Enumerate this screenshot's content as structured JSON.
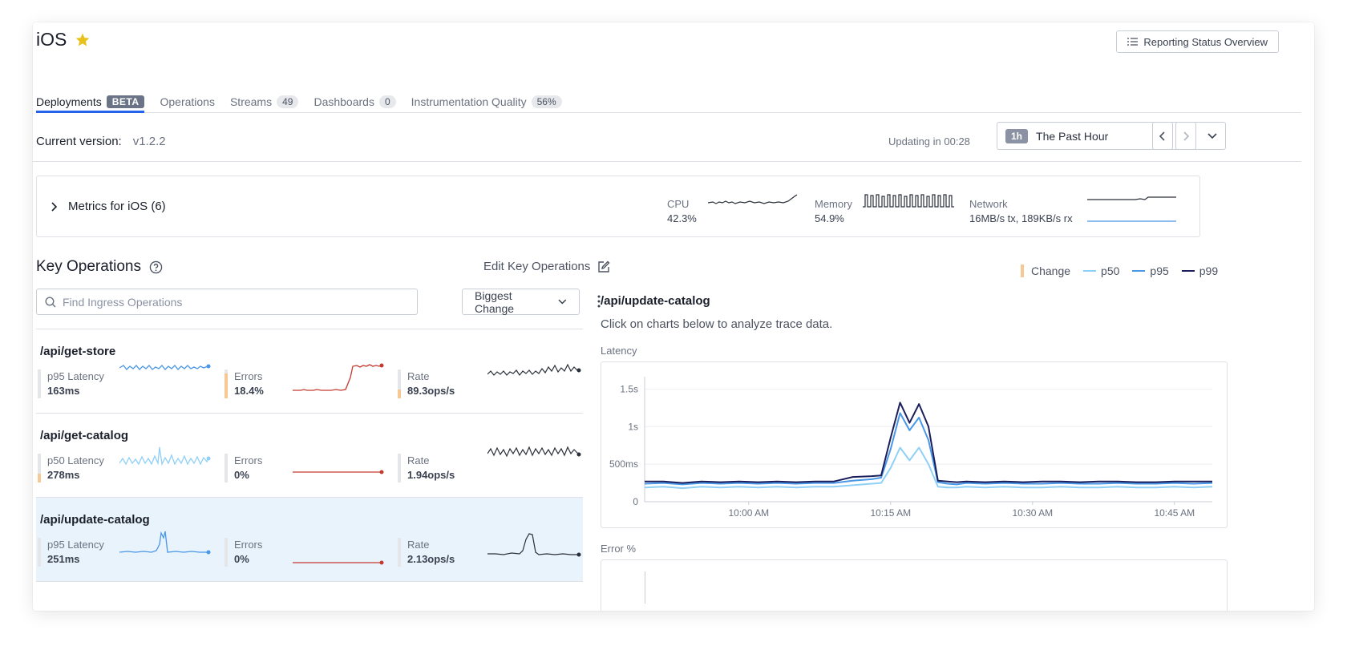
{
  "app": {
    "title": "iOS",
    "report_button": "Reporting Status Overview"
  },
  "tabs": [
    {
      "label": "Deployments",
      "badge": "BETA",
      "active": true
    },
    {
      "label": "Operations",
      "badge": ""
    },
    {
      "label": "Streams",
      "badge": "49"
    },
    {
      "label": "Dashboards",
      "badge": "0"
    },
    {
      "label": "Instrumentation Quality",
      "badge": "56%"
    }
  ],
  "version": {
    "label": "Current version:",
    "value": "v1.2.2"
  },
  "updating": "Updating in 00:28",
  "time_range": {
    "badge": "1h",
    "label": "The Past Hour"
  },
  "metrics": {
    "label": "Metrics for iOS (6)",
    "cpu": {
      "name": "CPU",
      "value": "42.3%"
    },
    "memory": {
      "name": "Memory",
      "value": "54.9%"
    },
    "network": {
      "name": "Network",
      "value": "16MB/s tx, 189KB/s rx"
    }
  },
  "key_ops": {
    "title": "Key Operations",
    "edit": "Edit Key Operations",
    "search_placeholder": "Find Ingress Operations",
    "sort": "Biggest Change"
  },
  "operations": [
    {
      "name": "/api/get-store",
      "latency_label": "p95 Latency",
      "latency": "163ms",
      "errors_label": "Errors",
      "errors": "18.4%",
      "rate_label": "Rate",
      "rate": "89.3ops/s",
      "latency_change": 0.0,
      "errors_change": 0.85,
      "rate_change": 0.3
    },
    {
      "name": "/api/get-catalog",
      "latency_label": "p50 Latency",
      "latency": "278ms",
      "errors_label": "Errors",
      "errors": "0%",
      "rate_label": "Rate",
      "rate": "1.94ops/s",
      "latency_change": 0.3,
      "errors_change": 0.0,
      "rate_change": 0.0
    },
    {
      "name": "/api/update-catalog",
      "latency_label": "p95 Latency",
      "latency": "251ms",
      "errors_label": "Errors",
      "errors": "0%",
      "rate_label": "Rate",
      "rate": "2.13ops/s",
      "latency_change": 0.0,
      "errors_change": 0.0,
      "rate_change": 0.0
    }
  ],
  "legend": {
    "change": "Change",
    "p50": "p50",
    "p95": "p95",
    "p99": "p99"
  },
  "detail": {
    "title": "/api/update-catalog",
    "subtitle": "Click on charts below to analyze trace data.",
    "latency_label": "Latency",
    "error_label": "Error %"
  },
  "colors": {
    "p50": "#8fd0f7",
    "p95": "#4a97e8",
    "p99": "#1a1f5c",
    "change": "#f5c894",
    "errors": "#c43a2f",
    "accent": "#2563eb"
  },
  "chart_data": {
    "type": "line",
    "title": "Latency",
    "xlabel": "",
    "ylabel": "",
    "x_ticks": [
      "10:00 AM",
      "10:15 AM",
      "10:30 AM",
      "10:45 AM"
    ],
    "y_ticks": [
      "0",
      "500ms",
      "1s",
      "1.5s"
    ],
    "ylim": [
      0,
      1.6
    ],
    "x": [
      "9:49",
      "9:51",
      "9:53",
      "9:55",
      "9:57",
      "9:59",
      "10:01",
      "10:03",
      "10:05",
      "10:07",
      "10:09",
      "10:11",
      "10:13",
      "10:14",
      "10:15",
      "10:16",
      "10:17",
      "10:18",
      "10:19",
      "10:20",
      "10:21",
      "10:22",
      "10:23",
      "10:25",
      "10:27",
      "10:29",
      "10:31",
      "10:33",
      "10:35",
      "10:37",
      "10:39",
      "10:41",
      "10:43",
      "10:45",
      "10:47",
      "10:49"
    ],
    "series": [
      {
        "name": "p50",
        "values": [
          0.19,
          0.2,
          0.18,
          0.2,
          0.19,
          0.2,
          0.19,
          0.2,
          0.19,
          0.2,
          0.2,
          0.22,
          0.24,
          0.25,
          0.45,
          0.72,
          0.55,
          0.72,
          0.5,
          0.2,
          0.19,
          0.19,
          0.2,
          0.19,
          0.2,
          0.19,
          0.19,
          0.2,
          0.19,
          0.19,
          0.2,
          0.19,
          0.19,
          0.2,
          0.19,
          0.2
        ]
      },
      {
        "name": "p95",
        "values": [
          0.24,
          0.25,
          0.23,
          0.25,
          0.24,
          0.25,
          0.24,
          0.25,
          0.24,
          0.25,
          0.25,
          0.28,
          0.3,
          0.32,
          0.7,
          1.18,
          0.95,
          1.12,
          0.82,
          0.26,
          0.24,
          0.23,
          0.25,
          0.24,
          0.25,
          0.24,
          0.24,
          0.25,
          0.24,
          0.24,
          0.25,
          0.24,
          0.24,
          0.25,
          0.24,
          0.25
        ]
      },
      {
        "name": "p99",
        "values": [
          0.27,
          0.27,
          0.25,
          0.27,
          0.26,
          0.27,
          0.26,
          0.27,
          0.26,
          0.27,
          0.27,
          0.33,
          0.34,
          0.35,
          0.85,
          1.32,
          1.05,
          1.3,
          1.0,
          0.28,
          0.27,
          0.26,
          0.27,
          0.26,
          0.27,
          0.26,
          0.27,
          0.27,
          0.26,
          0.27,
          0.27,
          0.26,
          0.26,
          0.27,
          0.27,
          0.27
        ]
      }
    ]
  }
}
